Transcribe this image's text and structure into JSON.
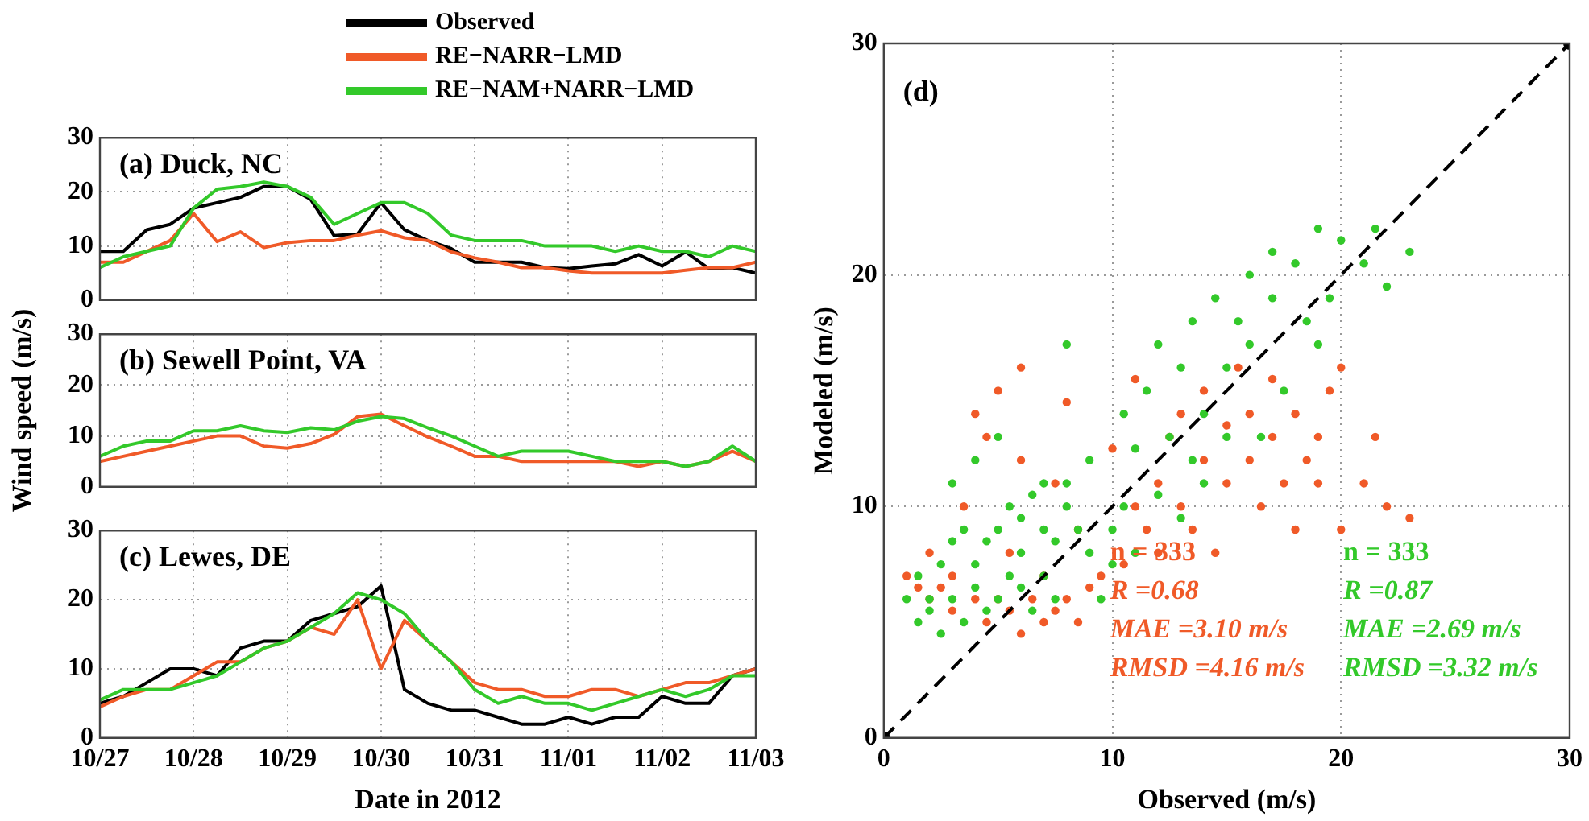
{
  "chart_data": [
    {
      "type": "line",
      "title": "(a) Duck, NC",
      "legend": "top",
      "grid": true,
      "tick_labels": "y",
      "marker": "none",
      "line_style": "solid",
      "xticks": [
        {
          "value": "2012-10-27",
          "label": null
        },
        {
          "value": "2012-10-28",
          "label": null
        },
        {
          "value": "2012-10-29",
          "label": null
        },
        {
          "value": "2012-10-30",
          "label": null
        },
        {
          "value": "2012-10-31",
          "label": null
        },
        {
          "value": "2012-11-01",
          "label": null
        },
        {
          "value": "2012-11-02",
          "label": null
        },
        {
          "value": "2012-11-03",
          "label": null
        }
      ],
      "x": [
        "2012-10-27T00:00",
        "2012-10-27T06:00",
        "2012-10-27T12:00",
        "2012-10-27T18:00",
        "2012-10-28T00:00",
        "2012-10-28T06:00",
        "2012-10-28T12:00",
        "2012-10-28T18:00",
        "2012-10-29T00:00",
        "2012-10-29T06:00",
        "2012-10-29T12:00",
        "2012-10-29T18:00",
        "2012-10-30T00:00",
        "2012-10-30T06:00",
        "2012-10-30T12:00",
        "2012-10-30T18:00",
        "2012-10-31T00:00",
        "2012-10-31T06:00",
        "2012-10-31T12:00",
        "2012-10-31T18:00",
        "2012-11-01T00:00",
        "2012-11-01T06:00",
        "2012-11-01T12:00",
        "2012-11-01T18:00",
        "2012-11-02T00:00",
        "2012-11-02T06:00",
        "2012-11-02T12:00",
        "2012-11-02T18:00",
        "2012-11-03T00:00"
      ],
      "series": [
        {
          "name": "Observed",
          "color": "#000000",
          "values": [
            9,
            9,
            13,
            14,
            17,
            18,
            19,
            21,
            21,
            18.6,
            11.9,
            12.2,
            18,
            13,
            11,
            9.5,
            7,
            7,
            7,
            6,
            5.8,
            6.3,
            6.7,
            8.4,
            6.3,
            8.9,
            5.8,
            6,
            5
          ]
        },
        {
          "name": "RE−NARR−LMD",
          "color": "#f05a28",
          "values": [
            7,
            7,
            9,
            11,
            16,
            10.8,
            12.6,
            9.7,
            10.6,
            11,
            11,
            12,
            12.8,
            11.5,
            11,
            8.9,
            7.8,
            7,
            6,
            6,
            5.4,
            5,
            5,
            5,
            5,
            5.5,
            6,
            6,
            7
          ]
        },
        {
          "name": "RE−NAM+NARR−LMD",
          "color": "#33c92a",
          "values": [
            6,
            8,
            9,
            10,
            17,
            20.5,
            21,
            21.8,
            21,
            19,
            14,
            16,
            18,
            18,
            16,
            12,
            11,
            11,
            11,
            10,
            10,
            10,
            9,
            10,
            9,
            9,
            8,
            10,
            9
          ]
        }
      ],
      "xlim": [
        "2012-10-27",
        "2012-11-03"
      ],
      "ylim": [
        0,
        30
      ],
      "yticks": [
        0,
        10,
        20,
        30
      ]
    },
    {
      "type": "line",
      "title": "(b) Sewell Point, VA",
      "ylabel": "Wind speed (m/s)",
      "grid": true,
      "tick_labels": "y",
      "marker": "none",
      "line_style": "solid",
      "xticks": [
        {
          "value": "2012-10-27",
          "label": null
        },
        {
          "value": "2012-10-28",
          "label": null
        },
        {
          "value": "2012-10-29",
          "label": null
        },
        {
          "value": "2012-10-30",
          "label": null
        },
        {
          "value": "2012-10-31",
          "label": null
        },
        {
          "value": "2012-11-01",
          "label": null
        },
        {
          "value": "2012-11-02",
          "label": null
        },
        {
          "value": "2012-11-03",
          "label": null
        }
      ],
      "x": [
        "2012-10-27T00:00",
        "2012-10-27T06:00",
        "2012-10-27T12:00",
        "2012-10-27T18:00",
        "2012-10-28T00:00",
        "2012-10-28T06:00",
        "2012-10-28T12:00",
        "2012-10-28T18:00",
        "2012-10-29T00:00",
        "2012-10-29T06:00",
        "2012-10-29T12:00",
        "2012-10-29T18:00",
        "2012-10-30T00:00",
        "2012-10-30T06:00",
        "2012-10-30T12:00",
        "2012-10-30T18:00",
        "2012-10-31T00:00",
        "2012-10-31T06:00",
        "2012-10-31T12:00",
        "2012-10-31T18:00",
        "2012-11-01T00:00",
        "2012-11-01T06:00",
        "2012-11-01T12:00",
        "2012-11-01T18:00",
        "2012-11-02T00:00",
        "2012-11-02T06:00",
        "2012-11-02T12:00",
        "2012-11-02T18:00",
        "2012-11-03T00:00"
      ],
      "series": [
        {
          "color": "#f05a28",
          "values": [
            5,
            6,
            7,
            8,
            9,
            10,
            10,
            8,
            7.6,
            8.5,
            10.3,
            13.8,
            14.3,
            12,
            9.8,
            8,
            6,
            6,
            5,
            5,
            5,
            5,
            5,
            4,
            5,
            4,
            5,
            7,
            5
          ]
        },
        {
          "color": "#33c92a",
          "values": [
            6,
            8,
            9,
            9,
            11,
            11,
            12,
            11,
            10.7,
            11.6,
            11.2,
            12.9,
            13.8,
            13.4,
            11.6,
            10,
            8,
            6,
            7,
            7,
            7,
            6,
            5,
            5,
            5,
            4,
            5,
            8,
            5
          ]
        }
      ],
      "xlim": [
        "2012-10-27",
        "2012-11-03"
      ],
      "ylim": [
        0,
        30
      ],
      "yticks": [
        0,
        10,
        20,
        30
      ]
    },
    {
      "type": "line",
      "title": "(c) Lewes, DE",
      "xlabel": "Date in 2012",
      "grid": true,
      "marker": "none",
      "line_style": "solid",
      "x": [
        "2012-10-27T00:00",
        "2012-10-27T06:00",
        "2012-10-27T12:00",
        "2012-10-27T18:00",
        "2012-10-28T00:00",
        "2012-10-28T06:00",
        "2012-10-28T12:00",
        "2012-10-28T18:00",
        "2012-10-29T00:00",
        "2012-10-29T06:00",
        "2012-10-29T12:00",
        "2012-10-29T18:00",
        "2012-10-30T00:00",
        "2012-10-30T06:00",
        "2012-10-30T12:00",
        "2012-10-30T18:00",
        "2012-10-31T00:00",
        "2012-10-31T06:00",
        "2012-10-31T12:00",
        "2012-10-31T18:00",
        "2012-11-01T00:00",
        "2012-11-01T06:00",
        "2012-11-01T12:00",
        "2012-11-01T18:00",
        "2012-11-02T00:00",
        "2012-11-02T06:00",
        "2012-11-02T12:00",
        "2012-11-02T18:00",
        "2012-11-03T00:00"
      ],
      "series": [
        {
          "color": "#000000",
          "values": [
            5,
            6,
            8,
            10,
            10,
            9,
            13,
            14,
            14,
            17,
            18,
            19,
            22,
            7,
            5,
            4,
            4,
            3,
            2,
            2,
            3,
            2,
            3,
            3,
            6,
            5,
            5,
            9,
            10
          ]
        },
        {
          "color": "#f05a28",
          "values": [
            4.5,
            6,
            7,
            7,
            9,
            11,
            11,
            13,
            14,
            16,
            15,
            20,
            10,
            17,
            14,
            11,
            8,
            7,
            7,
            6,
            6,
            7,
            7,
            6,
            7,
            8,
            8,
            9,
            10
          ]
        },
        {
          "color": "#33c92a",
          "values": [
            5.5,
            7,
            7,
            7,
            8,
            9,
            11,
            13,
            14,
            16,
            18,
            21,
            20,
            18,
            14,
            11,
            7,
            5,
            6,
            5,
            5,
            4,
            5,
            6,
            7,
            6,
            7,
            9,
            9
          ]
        }
      ],
      "xlim": [
        "2012-10-27",
        "2012-11-03"
      ],
      "xticks": [
        {
          "value": "2012-10-27",
          "label": "10/27"
        },
        {
          "value": "2012-10-28",
          "label": "10/28"
        },
        {
          "value": "2012-10-29",
          "label": "10/29"
        },
        {
          "value": "2012-10-30",
          "label": "10/30"
        },
        {
          "value": "2012-10-31",
          "label": "10/31"
        },
        {
          "value": "2012-11-01",
          "label": "11/01"
        },
        {
          "value": "2012-11-02",
          "label": "11/02"
        },
        {
          "value": "2012-11-03",
          "label": "11/03"
        }
      ],
      "ylim": [
        0,
        30
      ],
      "yticks": [
        0,
        10,
        20,
        30
      ]
    },
    {
      "type": "scatter",
      "title": "(d)",
      "xlabel": "Observed (m/s)",
      "ylabel": "Modeled (m/s)",
      "grid": true,
      "marker": "circle",
      "series": [
        {
          "color": "#f05a28",
          "x": [
            1,
            1.5,
            2,
            2,
            2.5,
            3,
            3,
            3.5,
            4,
            4,
            4.5,
            4.5,
            5,
            5,
            5.5,
            5.5,
            6,
            6,
            6,
            6.5,
            7,
            7,
            7.5,
            7.5,
            8,
            8,
            8.5,
            8.5,
            9,
            9.5,
            10,
            10.5,
            11,
            11,
            11.5,
            12,
            12,
            12.5,
            13,
            13,
            13.5,
            14,
            14,
            14.5,
            15,
            15,
            15.5,
            16,
            16,
            16.5,
            17,
            17,
            17.5,
            18,
            18,
            18.5,
            19,
            19,
            19.5,
            20,
            20,
            21,
            21.5,
            22,
            23
          ],
          "values": [
            7,
            6.5,
            6,
            8,
            6.5,
            7,
            5.5,
            10,
            14,
            6,
            13,
            5,
            6,
            15,
            5.5,
            8,
            4.5,
            12,
            16,
            6,
            5,
            7,
            11,
            5.5,
            6,
            14.5,
            5,
            9,
            6.5,
            7,
            12.5,
            7.5,
            10,
            15.5,
            9,
            8,
            11,
            13,
            10,
            14,
            9,
            12,
            15,
            8,
            11,
            13.5,
            16,
            12,
            14,
            10,
            13,
            15.5,
            11,
            9,
            14,
            12,
            11,
            13,
            15,
            9,
            16,
            11,
            13,
            10,
            9.5
          ]
        },
        {
          "color": "#33c92a",
          "x": [
            1,
            1.5,
            1.5,
            2,
            2,
            2.5,
            2.5,
            3,
            3,
            3,
            3.5,
            3.5,
            4,
            4,
            4,
            4.5,
            4.5,
            5,
            5,
            5,
            5.5,
            5.5,
            6,
            6,
            6,
            6.5,
            6.5,
            7,
            7,
            7,
            7.5,
            7.5,
            8,
            8,
            8,
            8.5,
            9,
            9,
            9.5,
            10,
            10,
            10.5,
            10.5,
            11,
            11,
            11.5,
            12,
            12,
            12.5,
            13,
            13,
            13.5,
            13.5,
            14,
            14,
            14.5,
            15,
            15,
            15.5,
            16,
            16,
            16.5,
            17,
            17,
            17.5,
            18,
            18.5,
            19,
            19,
            19.5,
            20,
            21,
            21.5,
            22,
            23
          ],
          "values": [
            6,
            5,
            7,
            6,
            5.5,
            4.5,
            7.5,
            6,
            8.5,
            11,
            5,
            9,
            6.5,
            12,
            7.5,
            5.5,
            8.5,
            6,
            9,
            13,
            7,
            10,
            8,
            6.5,
            9.5,
            5.5,
            10.5,
            7,
            9,
            11,
            6,
            8.5,
            10,
            11,
            17,
            9,
            8,
            12,
            6,
            9,
            7.5,
            10,
            14,
            8,
            12.5,
            15,
            17,
            10.5,
            13,
            9.5,
            16,
            12,
            18,
            14,
            11,
            19,
            13,
            16,
            18,
            17,
            20,
            13,
            19,
            21,
            15,
            20.5,
            18,
            22,
            17,
            19,
            21.5,
            20.5,
            22,
            19.5,
            21
          ]
        },
        {
          "type": "line",
          "color": "#000000",
          "line_style": "dashed",
          "x": [
            0,
            30
          ],
          "values": [
            0,
            30
          ]
        }
      ],
      "xlim": [
        0,
        30
      ],
      "xticks": [
        0,
        10,
        20,
        30
      ],
      "ylim": [
        0,
        30
      ],
      "yticks": [
        0,
        10,
        20,
        30
      ],
      "annotations": [
        "n = 333",
        "R =0.68",
        "MAE =3.10 m/s",
        "RMSD =4.16 m/s",
        "n = 333",
        "R =0.87",
        "MAE =2.69 m/s",
        "RMSD =3.32 m/s"
      ]
    }
  ]
}
